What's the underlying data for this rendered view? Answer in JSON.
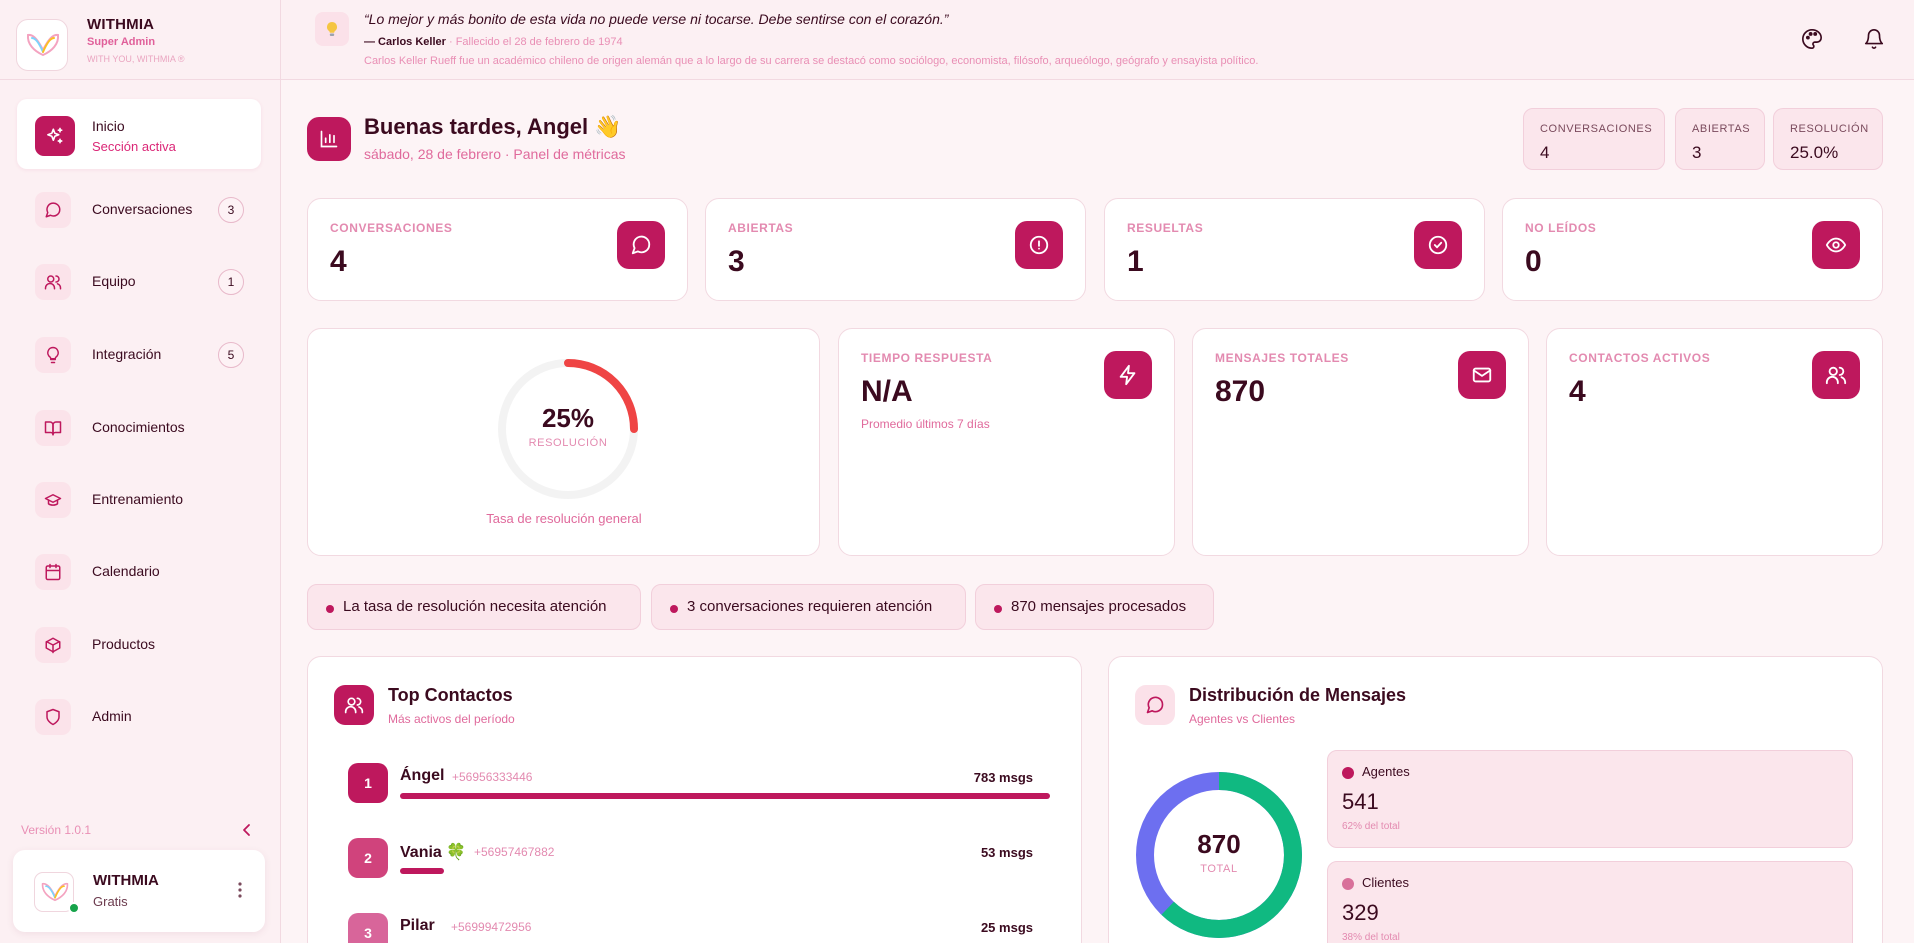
{
  "brand": {
    "name": "WITHMIA",
    "role": "Super Admin",
    "tagline": "WITH YOU, WITHMIA ®"
  },
  "nav": {
    "items": [
      {
        "label": "Inicio",
        "sub": "Sección activa",
        "icon": "sparkles-icon",
        "active": true
      },
      {
        "label": "Conversaciones",
        "badge": "3",
        "icon": "chat-bubble-icon"
      },
      {
        "label": "Equipo",
        "badge": "1",
        "icon": "users-icon"
      },
      {
        "label": "Integración",
        "badge": "5",
        "icon": "lightbulb-icon"
      },
      {
        "label": "Conocimientos",
        "icon": "book-icon"
      },
      {
        "label": "Entrenamiento",
        "icon": "graduation-cap-icon"
      },
      {
        "label": "Calendario",
        "icon": "calendar-icon"
      },
      {
        "label": "Productos",
        "icon": "box-icon"
      },
      {
        "label": "Admin",
        "icon": "shield-icon"
      }
    ]
  },
  "sidebar_footer": {
    "version": "Versión 1.0.1",
    "user_name": "WITHMIA",
    "user_plan": "Gratis"
  },
  "quote": {
    "text": "“Lo mejor y más bonito de esta vida no puede verse ni tocarse. Debe sentirse con el corazón.”",
    "author": "— Carlos Keller",
    "died": " · Fallecido el 28 de febrero de 1974",
    "bio": "Carlos Keller Rueff fue un académico chileno de origen alemán que a lo largo de su carrera se destacó como sociólogo, economista, filósofo, arqueólogo, geógrafo y ensayista político."
  },
  "header": {
    "title": "Buenas tardes, Angel 👋",
    "subtitle": "sábado, 28 de febrero · Panel de métricas",
    "summary": [
      {
        "label": "CONVERSACIONES",
        "value": "4"
      },
      {
        "label": "ABIERTAS",
        "value": "3"
      },
      {
        "label": "RESOLUCIÓN",
        "value": "25.0%"
      }
    ]
  },
  "stats": [
    {
      "label": "CONVERSACIONES",
      "value": "4",
      "icon": "chat-bubble-icon"
    },
    {
      "label": "ABIERTAS",
      "value": "3",
      "icon": "alert-circle-icon"
    },
    {
      "label": "RESUELTAS",
      "value": "1",
      "icon": "check-circle-icon"
    },
    {
      "label": "NO LEÍDOS",
      "value": "0",
      "icon": "eye-icon"
    }
  ],
  "resolution": {
    "percent_text": "25%",
    "label": "RESOLUCIÓN",
    "caption": "Tasa de resolución general",
    "fraction": 0.25
  },
  "metrics": [
    {
      "label": "TIEMPO RESPUESTA",
      "value": "N/A",
      "note": "Promedio últimos 7 días",
      "icon": "lightning-icon"
    },
    {
      "label": "MENSAJES TOTALES",
      "value": "870",
      "icon": "mail-icon"
    },
    {
      "label": "CONTACTOS ACTIVOS",
      "value": "4",
      "icon": "users-icon"
    }
  ],
  "alerts": [
    "La tasa de resolución necesita atención",
    "3 conversaciones requieren atención",
    "870 mensajes procesados"
  ],
  "top_contacts": {
    "title": "Top Contactos",
    "subtitle": "Más activos del período",
    "items": [
      {
        "rank": "1",
        "name": "Ángel",
        "phone": "+56956333446",
        "msgs": "783 msgs",
        "count": 783
      },
      {
        "rank": "2",
        "name": "Vania 🍀",
        "phone": "+56957467882",
        "msgs": "53 msgs",
        "count": 53
      },
      {
        "rank": "3",
        "name": "Pilar",
        "phone": "+56999472956",
        "msgs": "25 msgs",
        "count": 25
      }
    ]
  },
  "distribution": {
    "title": "Distribución de Mensajes",
    "subtitle": "Agentes vs Clientes",
    "total": "870",
    "total_label": "TOTAL",
    "agents": {
      "name": "Agentes",
      "value": "541",
      "pct": "62% del total",
      "color": "#be185d"
    },
    "clients": {
      "name": "Clientes",
      "value": "329",
      "pct": "38% del total",
      "color": "#d8709a"
    }
  },
  "colors": {
    "accent": "#be185d",
    "donut_agents": "#10b981",
    "donut_clients": "#6d6ff0"
  }
}
